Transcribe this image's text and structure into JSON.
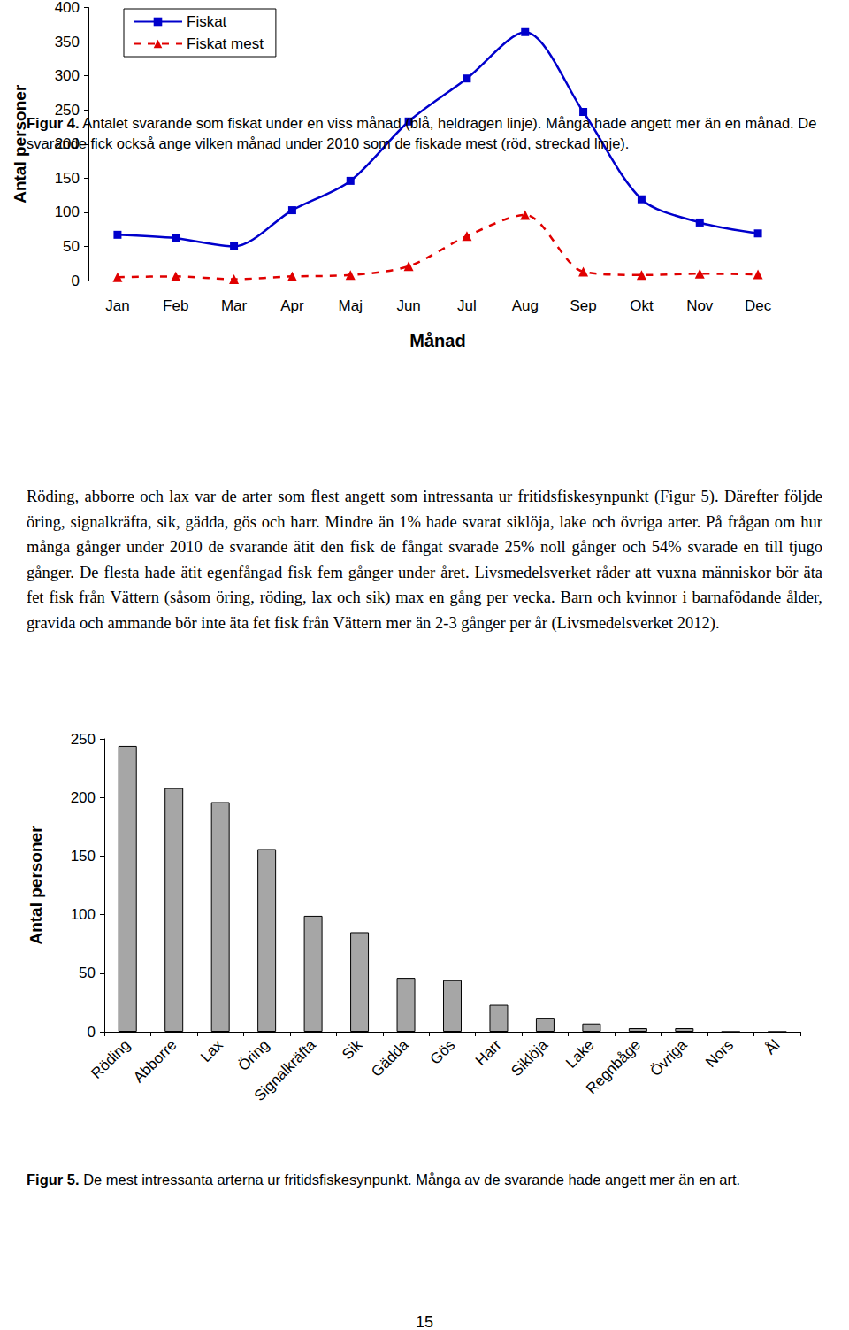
{
  "document": {
    "paragraph": "Röding, abborre och lax var de arter som flest angett som intressanta ur fritidsfiskesynpunkt (Figur 5). Därefter följde öring, signalkräfta, sik, gädda, gös och harr. Mindre än 1% hade svarat siklöja, lake och övriga arter. På frågan om hur många gånger under 2010 de svarande ätit den fisk de fångat svarade 25% noll gånger och 54% svarade en till tjugo gånger. De flesta hade ätit egenfångad fisk fem gånger under året. Livsmedelsverket råder att vuxna människor bör äta fet fisk från Vättern (såsom öring, röding, lax och sik) max en gång per vecka. Barn och kvinnor i barnafödande ålder, gravida och ammande bör inte äta fet fisk från Vättern mer än 2-3 gånger per år (Livsmedelsverket 2012).",
    "page_number": "15"
  },
  "chart_data": [
    {
      "type": "line",
      "caption": {
        "label": "Figur 4.",
        "text": "Antalet svarande som fiskat under en viss månad (blå, heldragen linje). Många hade angett mer än en månad. De svarande fick också ange vilken månad under 2010 som de fiskade mest (röd, streckad linje)."
      },
      "x_label": "Månad",
      "y_label": "Antal personer",
      "categories": [
        "Jan",
        "Feb",
        "Mar",
        "Apr",
        "Maj",
        "Jun",
        "Jul",
        "Aug",
        "Sep",
        "Okt",
        "Nov",
        "Dec"
      ],
      "series": [
        {
          "name": "Fiskat",
          "color": "#0000cc",
          "marker": "square",
          "line_style": "solid",
          "values": [
            67,
            62,
            50,
            103,
            146,
            233,
            296,
            364,
            247,
            119,
            85,
            69
          ]
        },
        {
          "name": "Fiskat mest",
          "color": "#e00000",
          "marker": "triangle",
          "line_style": "dashed",
          "values": [
            5,
            6,
            2,
            6,
            8,
            21,
            65,
            96,
            13,
            8,
            10,
            9
          ]
        }
      ],
      "ylim": [
        0,
        400
      ],
      "yticks": [
        0,
        50,
        100,
        150,
        200,
        250,
        300,
        350,
        400
      ],
      "grid": false,
      "legend": "upper left"
    },
    {
      "type": "bar",
      "caption": {
        "label": "Figur 5.",
        "text": "De mest intressanta arterna ur fritidsfiskesynpunkt. Många av de svarande hade angett mer än en art."
      },
      "y_label": "Antal personer",
      "categories": [
        "Röding",
        "Abborre",
        "Lax",
        "Öring",
        "Signalkräfta",
        "Sik",
        "Gädda",
        "Gös",
        "Harr",
        "Siklöja",
        "Lake",
        "Regnbåge",
        "Övriga",
        "Nors",
        "Ål"
      ],
      "values": [
        244,
        208,
        196,
        156,
        99,
        85,
        46,
        44,
        23,
        12,
        7,
        3,
        3,
        0,
        0
      ],
      "color": "#a6a6a6",
      "ylim": [
        0,
        250
      ],
      "yticks": [
        0,
        50,
        100,
        150,
        200,
        250
      ],
      "grid": false
    }
  ]
}
